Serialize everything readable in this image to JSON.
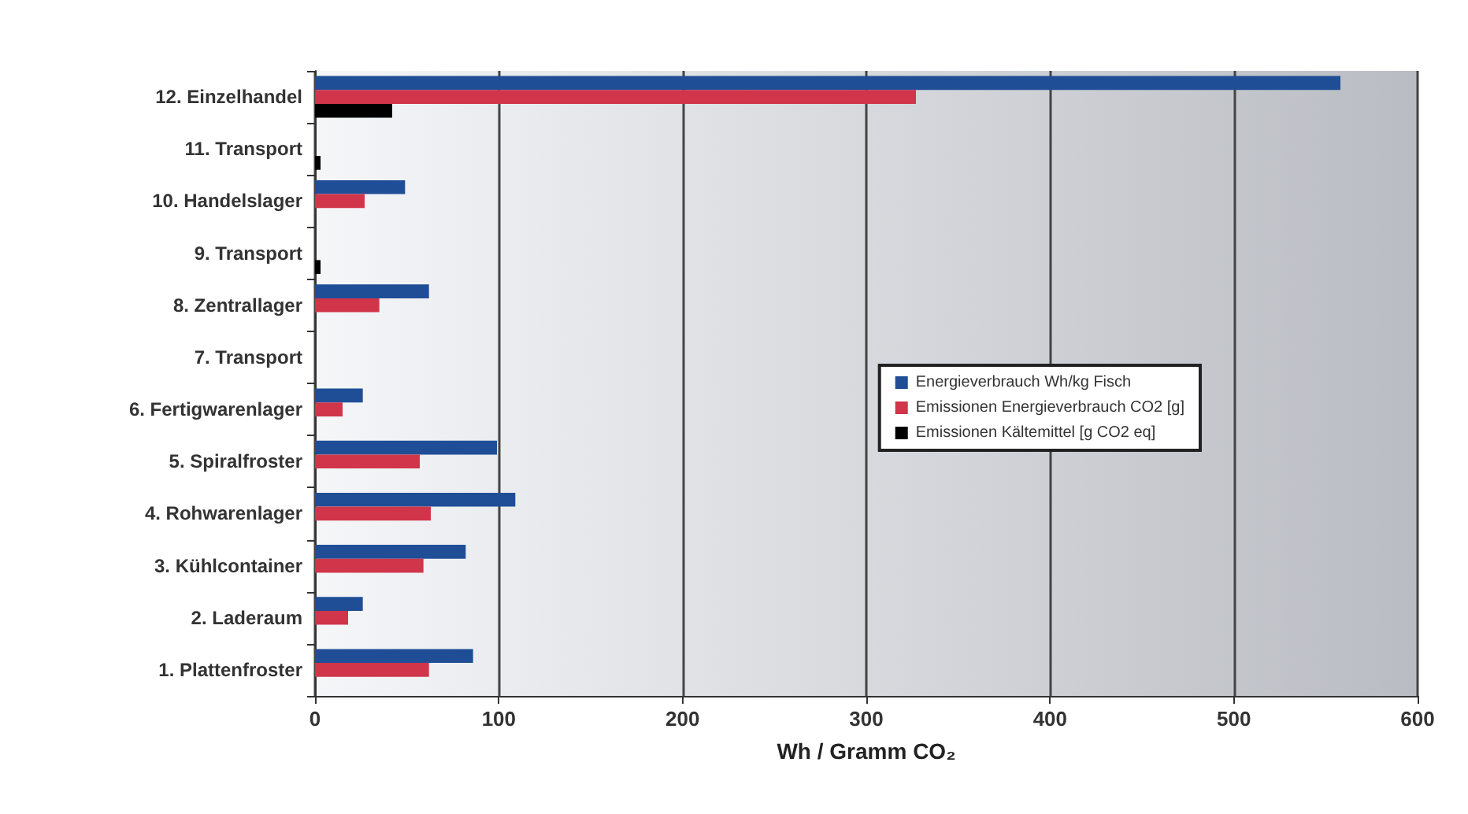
{
  "chart_data": {
    "type": "bar",
    "orientation": "horizontal",
    "xlabel": "Wh / Gramm CO₂",
    "categories": [
      "12. Einzelhandel",
      "11. Transport",
      "10. Handelslager",
      "9. Transport",
      "8. Zentrallager",
      "7. Transport",
      "6. Fertigwarenlager",
      "5. Spiralfroster",
      "4. Rohwarenlager",
      "3. Kühlcontainer",
      "2. Laderaum",
      "1. Plattenfroster"
    ],
    "series": [
      {
        "name": "Energieverbrauch Wh/kg Fisch",
        "color": "#1f4e96",
        "values": [
          558,
          0,
          49,
          0,
          62,
          0,
          26,
          99,
          109,
          82,
          26,
          86
        ]
      },
      {
        "name": "Emissionen Energieverbrauch CO2 [g]",
        "color": "#d0354a",
        "values": [
          327,
          0,
          27,
          0,
          35,
          0,
          15,
          57,
          63,
          59,
          18,
          62
        ]
      },
      {
        "name": "Emissionen Kältemittel [g CO2 eq]",
        "color": "#000000",
        "values": [
          42,
          3,
          0,
          3,
          0,
          null,
          0,
          0,
          0,
          0,
          0,
          0
        ]
      }
    ],
    "xlim": [
      0,
      600
    ],
    "xticks": [
      0,
      100,
      200,
      300,
      400,
      500,
      600
    ],
    "grid": "x",
    "legend": "right"
  }
}
